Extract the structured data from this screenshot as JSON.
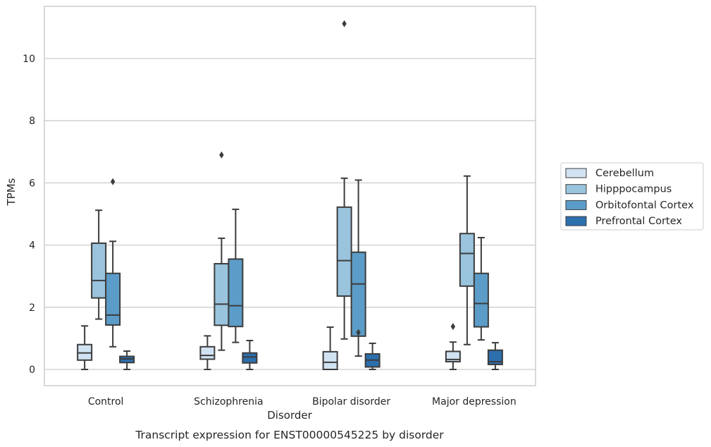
{
  "chart_data": {
    "type": "box",
    "caption": "Transcript expression for ENST00000545225 by disorder",
    "xlabel": "Disorder",
    "ylabel": "TPMs",
    "ylim": [
      -0.5,
      11.6
    ],
    "yticks": [
      0,
      2,
      4,
      6,
      8,
      10
    ],
    "grid": "horizontal",
    "legend_position": "right",
    "categories": [
      "Control",
      "Schizophrenia",
      "Bipolar disorder",
      "Major depression"
    ],
    "series": [
      {
        "name": "Cerebellum",
        "color": "#d1e2f2",
        "boxes": [
          {
            "whisker_low": 0.0,
            "q1": 0.3,
            "median": 0.53,
            "q3": 0.8,
            "whisker_high": 1.4,
            "outliers": []
          },
          {
            "whisker_low": 0.0,
            "q1": 0.33,
            "median": 0.45,
            "q3": 0.73,
            "whisker_high": 1.08,
            "outliers": []
          },
          {
            "whisker_low": 0.0,
            "q1": 0.0,
            "median": 0.23,
            "q3": 0.57,
            "whisker_high": 1.36,
            "outliers": []
          },
          {
            "whisker_low": 0.0,
            "q1": 0.25,
            "median": 0.32,
            "q3": 0.58,
            "whisker_high": 0.88,
            "outliers": [
              1.38
            ]
          }
        ]
      },
      {
        "name": "Hipppocampus",
        "color": "#9ac4de",
        "boxes": [
          {
            "whisker_low": 1.62,
            "q1": 2.3,
            "median": 2.86,
            "q3": 4.06,
            "whisker_high": 5.12,
            "outliers": []
          },
          {
            "whisker_low": 0.62,
            "q1": 1.42,
            "median": 2.1,
            "q3": 3.4,
            "whisker_high": 4.22,
            "outliers": [
              6.9
            ]
          },
          {
            "whisker_low": 0.98,
            "q1": 2.36,
            "median": 3.5,
            "q3": 5.22,
            "whisker_high": 6.15,
            "outliers": [
              11.12
            ]
          },
          {
            "whisker_low": 0.8,
            "q1": 2.68,
            "median": 3.73,
            "q3": 4.37,
            "whisker_high": 6.22,
            "outliers": []
          }
        ]
      },
      {
        "name": "Orbitofontal Cortex",
        "color": "#5c9cc8",
        "boxes": [
          {
            "whisker_low": 0.73,
            "q1": 1.43,
            "median": 1.75,
            "q3": 3.09,
            "whisker_high": 4.12,
            "outliers": [
              6.04
            ]
          },
          {
            "whisker_low": 0.87,
            "q1": 1.38,
            "median": 2.05,
            "q3": 3.55,
            "whisker_high": 5.15,
            "outliers": []
          },
          {
            "whisker_low": 0.43,
            "q1": 1.07,
            "median": 2.75,
            "q3": 3.77,
            "whisker_high": 6.09,
            "outliers": [
              1.19
            ]
          },
          {
            "whisker_low": 0.95,
            "q1": 1.37,
            "median": 2.12,
            "q3": 3.09,
            "whisker_high": 4.24,
            "outliers": []
          }
        ]
      },
      {
        "name": "Prefrontal Cortex",
        "color": "#2c6fad",
        "boxes": [
          {
            "whisker_low": 0.0,
            "q1": 0.22,
            "median": 0.34,
            "q3": 0.42,
            "whisker_high": 0.59,
            "outliers": []
          },
          {
            "whisker_low": 0.0,
            "q1": 0.21,
            "median": 0.4,
            "q3": 0.53,
            "whisker_high": 0.93,
            "outliers": []
          },
          {
            "whisker_low": 0.0,
            "q1": 0.08,
            "median": 0.3,
            "q3": 0.5,
            "whisker_high": 0.84,
            "outliers": []
          },
          {
            "whisker_low": 0.0,
            "q1": 0.16,
            "median": 0.25,
            "q3": 0.62,
            "whisker_high": 0.86,
            "outliers": []
          }
        ]
      }
    ]
  }
}
